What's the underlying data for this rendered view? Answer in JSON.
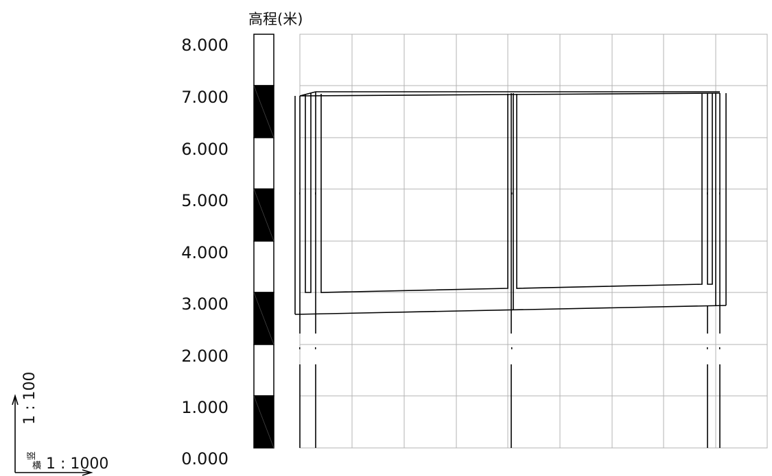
{
  "elevation_label": "高程(米)",
  "ticks": [
    "8.000",
    "7.000",
    "6.000",
    "5.000",
    "4.000",
    "3.000",
    "2.000",
    "1.000",
    "0.000"
  ],
  "scale": {
    "vertical_label": "1 : 100",
    "vertical_char": "竖",
    "horizontal_char": "横",
    "horizontal_label": "1 : 1000"
  },
  "colors": {
    "line": "#000000",
    "grid": "#b3b3b3",
    "bar_fill": "#000000"
  }
}
